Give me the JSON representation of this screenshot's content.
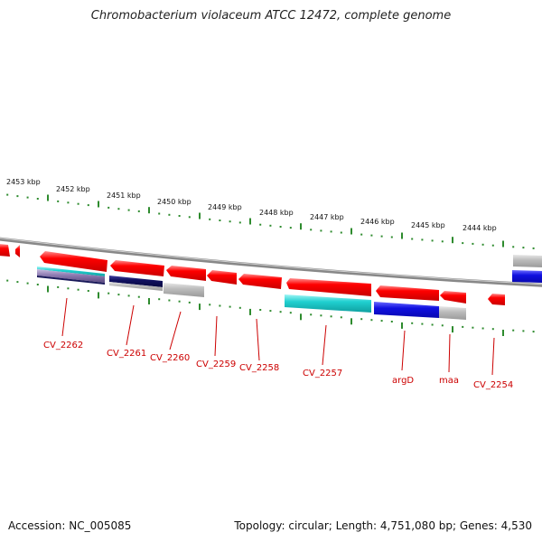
{
  "title": "Chromobacterium violaceum ATCC 12472, complete genome",
  "footer": {
    "accession": "Accession: NC_005085",
    "summary": "Topology: circular; Length: 4,751,080 bp; Genes: 4,530"
  },
  "scale_labels": [
    "2453 kbp",
    "2452 kbp",
    "2451 kbp",
    "2450 kbp",
    "2449 kbp",
    "2448 kbp",
    "2447 kbp",
    "2446 kbp",
    "2445 kbp",
    "2444 kbp"
  ],
  "gene_labels": [
    "CV_2262",
    "CV_2261",
    "CV_2260",
    "CV_2259",
    "CV_2258",
    "CV_2257",
    "argD",
    "maa",
    "CV_2254"
  ],
  "colors": {
    "gene": "#ff0000",
    "label": "#cc0000",
    "tick": "#2e8b2e",
    "backbone": "#888888",
    "cyan": "#20d0d0",
    "navy": "#101060",
    "blue": "#1010e0",
    "gray": "#b8b8b8",
    "purple": "#8c7ab0"
  }
}
